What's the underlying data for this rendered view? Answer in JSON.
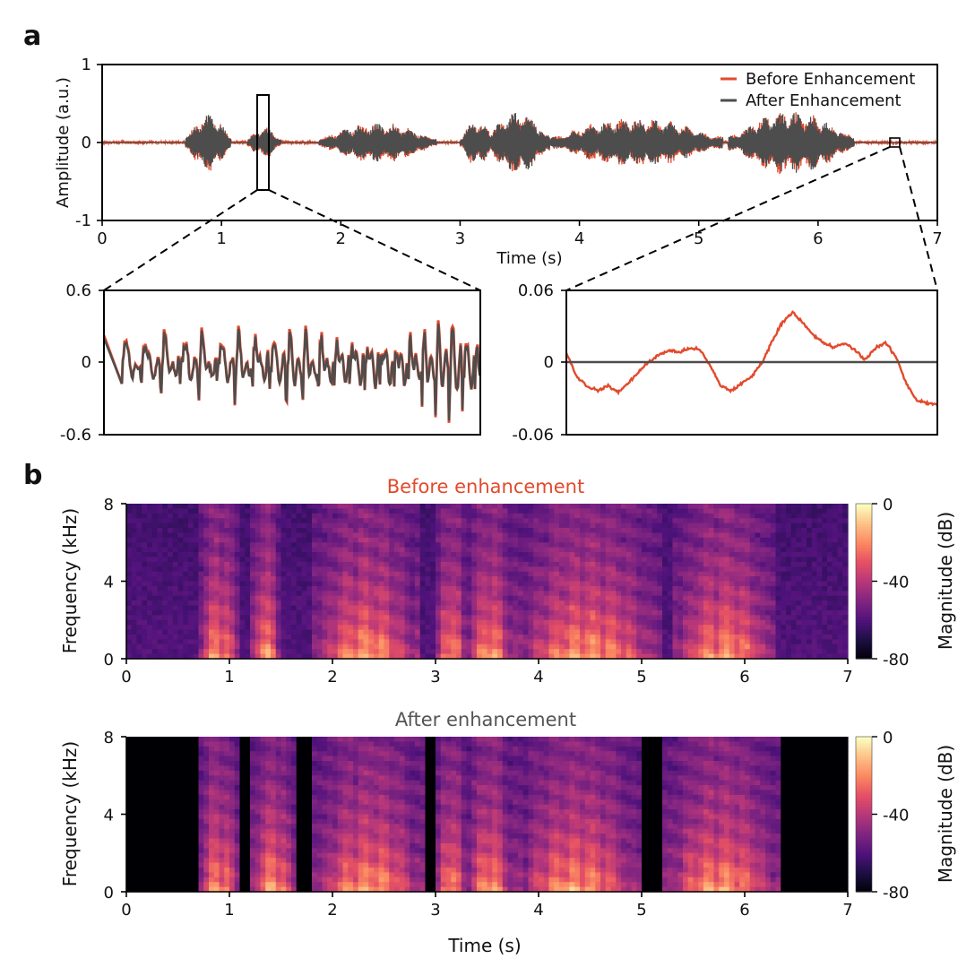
{
  "figure": {
    "panel_a_letter": "a",
    "panel_b_letter": "b"
  },
  "colors": {
    "before": "#e24a2c",
    "after": "#4d4d4d",
    "axis": "#000000"
  },
  "chart_data": [
    {
      "id": "waveform-main",
      "type": "line",
      "xlabel": "Time (s)",
      "ylabel": "Amplitude (a.u.)",
      "xlim": [
        0,
        7
      ],
      "ylim": [
        -1,
        1
      ],
      "x_ticks": [
        "0",
        "1",
        "2",
        "3",
        "4",
        "5",
        "6",
        "7"
      ],
      "y_ticks": [
        "-1",
        "0",
        "1"
      ],
      "legend": "top-right",
      "series": [
        {
          "name": "Before Enhancement",
          "color": "#e24a2c"
        },
        {
          "name": "After Enhancement",
          "color": "#4d4d4d"
        }
      ],
      "speech_segments_s": [
        [
          0.7,
          1.08
        ],
        [
          1.22,
          1.5
        ],
        [
          1.82,
          2.8
        ],
        [
          3.0,
          3.28
        ],
        [
          3.22,
          3.75
        ],
        [
          3.75,
          5.2
        ],
        [
          5.25,
          6.3
        ]
      ],
      "zoom_regions_s": [
        [
          1.29,
          1.38
        ],
        [
          6.6,
          6.68
        ]
      ]
    },
    {
      "id": "waveform-zoom-voiced",
      "type": "line",
      "xlabel": "",
      "ylabel": "",
      "ylim": [
        -0.6,
        0.6
      ],
      "y_ticks": [
        "0.6",
        "0",
        "-0.6"
      ],
      "series": [
        {
          "name": "Before Enhancement",
          "color": "#e24a2c"
        },
        {
          "name": "After Enhancement",
          "color": "#4d4d4d"
        }
      ]
    },
    {
      "id": "waveform-zoom-silence",
      "type": "line",
      "xlabel": "",
      "ylabel": "",
      "ylim": [
        -0.06,
        0.06
      ],
      "y_ticks": [
        "0.06",
        "0",
        "-0.06"
      ],
      "series": [
        {
          "name": "Before Enhancement",
          "color": "#e24a2c",
          "values": [
            0.008,
            -0.012,
            -0.02,
            -0.024,
            -0.02,
            -0.025,
            -0.018,
            -0.008,
            0.0,
            0.006,
            0.01,
            0.008,
            0.012,
            0.01,
            -0.004,
            -0.02,
            -0.024,
            -0.018,
            -0.012,
            0.0,
            0.018,
            0.034,
            0.042,
            0.032,
            0.022,
            0.016,
            0.012,
            0.016,
            0.01,
            0.002,
            0.012,
            0.016,
            0.004,
            -0.018,
            -0.032,
            -0.034,
            -0.036
          ]
        },
        {
          "name": "After Enhancement",
          "color": "#4d4d4d",
          "values": [
            0.0,
            0.0
          ]
        }
      ]
    },
    {
      "id": "spectrogram-before",
      "type": "heatmap",
      "title": "Before enhancement",
      "xlabel": "",
      "ylabel": "Frequency (kHz)",
      "colorbar_label": "Magnitude (dB)",
      "xlim": [
        0,
        7
      ],
      "ylim": [
        0,
        8
      ],
      "clim": [
        -80,
        0
      ],
      "x_ticks": [
        "0",
        "1",
        "2",
        "3",
        "4",
        "5",
        "6",
        "7"
      ],
      "y_ticks": [
        "0",
        "4",
        "8"
      ],
      "colorbar_ticks": [
        "0",
        "-40",
        "-80"
      ],
      "background_level": 0.26,
      "speech_segments_s": [
        [
          0.7,
          1.1
        ],
        [
          1.2,
          1.5
        ],
        [
          1.8,
          2.85
        ],
        [
          3.0,
          3.3
        ],
        [
          3.3,
          3.75
        ],
        [
          3.75,
          5.2
        ],
        [
          5.3,
          6.3
        ]
      ]
    },
    {
      "id": "spectrogram-after",
      "type": "heatmap",
      "title": "After enhancement",
      "xlabel": "Time (s)",
      "ylabel": "Frequency (kHz)",
      "colorbar_label": "Magnitude (dB)",
      "xlim": [
        0,
        7
      ],
      "ylim": [
        0,
        8
      ],
      "clim": [
        -80,
        0
      ],
      "x_ticks": [
        "0",
        "1",
        "2",
        "3",
        "4",
        "5",
        "6",
        "7"
      ],
      "y_ticks": [
        "0",
        "4",
        "8"
      ],
      "colorbar_ticks": [
        "0",
        "-40",
        "-80"
      ],
      "background_level": 0.0,
      "speech_segments_s": [
        [
          0.7,
          1.1
        ],
        [
          1.2,
          1.65
        ],
        [
          1.8,
          2.9
        ],
        [
          3.0,
          3.3
        ],
        [
          3.3,
          3.75
        ],
        [
          3.75,
          5.0
        ],
        [
          5.2,
          6.35
        ]
      ]
    }
  ]
}
